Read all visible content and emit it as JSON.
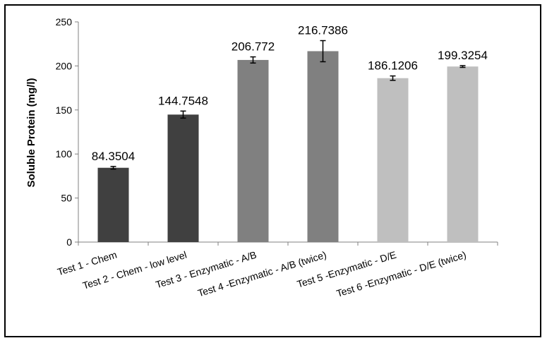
{
  "chart_data": {
    "type": "bar",
    "ylabel": "Soluble Protein (mg/l)",
    "ylim": [
      0,
      250
    ],
    "yticks": [
      0,
      50,
      100,
      150,
      200,
      250
    ],
    "grid": false,
    "categories": [
      "Test 1 - Chem",
      "Test 2 - Chem - low level",
      "Test 3 - Enzymatic - A/B",
      "Test 4 -Enzymatic - A/B (twice)",
      "Test 5 -Enzymatic - D/E",
      "Test 6 -Enzymatic - D/E (twice)"
    ],
    "values": [
      84.3504,
      144.7548,
      206.772,
      216.7386,
      186.1206,
      199.3254
    ],
    "data_labels": [
      "84.3504",
      "144.7548",
      "206.772",
      "216.7386",
      "186.1206",
      "199.3254"
    ],
    "error": [
      1.5,
      4,
      3.5,
      12,
      2.5,
      1
    ],
    "colors": [
      "#404040",
      "#404040",
      "#808080",
      "#808080",
      "#bfbfbf",
      "#bfbfbf"
    ]
  }
}
